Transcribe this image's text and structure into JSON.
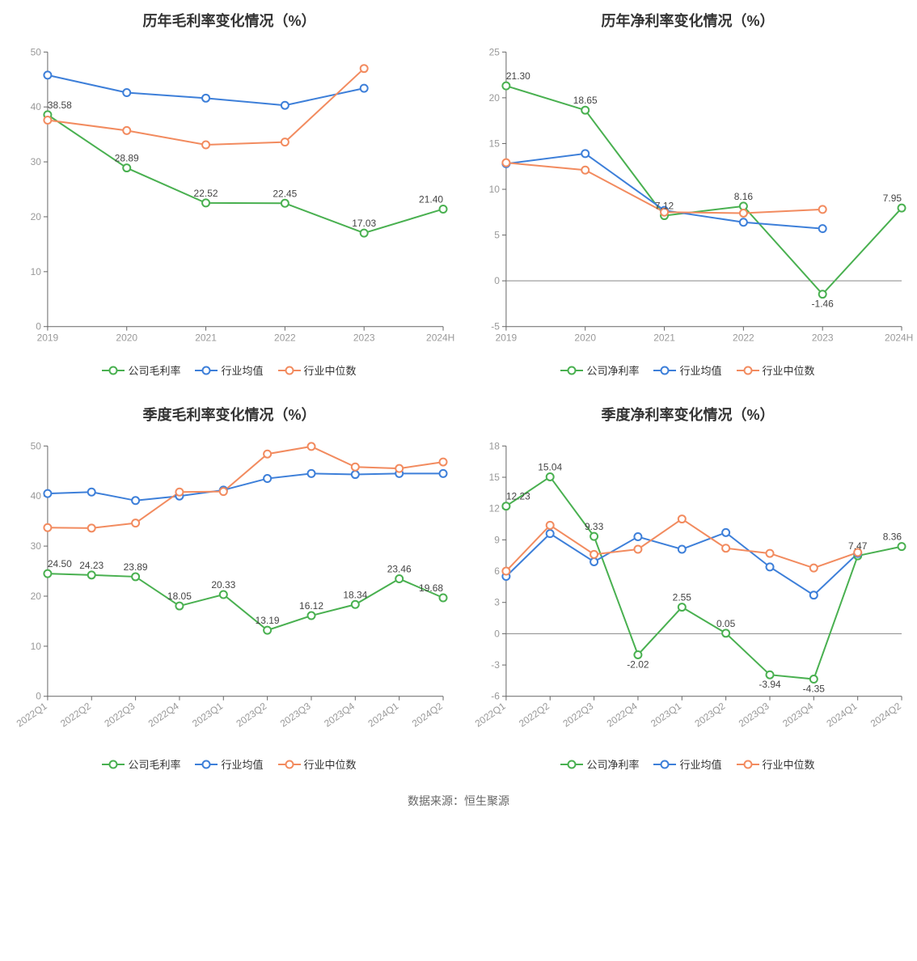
{
  "source_label": "数据来源：恒生聚源",
  "colors": {
    "company": "#49b050",
    "avg": "#3d7fd9",
    "median": "#f28b5f",
    "axis": "#666666",
    "tick_text": "#999999",
    "label_text": "#444444",
    "background": "#ffffff"
  },
  "marker_radius": 4.5,
  "line_width": 2,
  "legend_labels": {
    "company_gross": "公司毛利率",
    "company_net": "公司净利率",
    "avg": "行业均值",
    "median": "行业中位数"
  },
  "charts": [
    {
      "id": "annual_gross",
      "title": "历年毛利率变化情况（%）",
      "categories": [
        "2019",
        "2020",
        "2021",
        "2022",
        "2023",
        "2024H1"
      ],
      "y": {
        "min": 0,
        "max": 50,
        "step": 10
      },
      "x_label_rotate": 0,
      "series": [
        {
          "key": "company",
          "legend": "company_gross",
          "data": [
            38.58,
            28.89,
            22.52,
            22.45,
            17.03,
            21.4
          ],
          "labels": [
            "38.58",
            "28.89",
            "22.52",
            "22.45",
            "17.03",
            "21.40"
          ],
          "show_labels": true
        },
        {
          "key": "avg",
          "legend": "avg",
          "data": [
            45.8,
            42.6,
            41.6,
            40.3,
            43.4,
            null
          ],
          "show_labels": false
        },
        {
          "key": "median",
          "legend": "median",
          "data": [
            37.6,
            35.7,
            33.1,
            33.6,
            47.0,
            null
          ],
          "show_labels": false
        }
      ]
    },
    {
      "id": "annual_net",
      "title": "历年净利率变化情况（%）",
      "categories": [
        "2019",
        "2020",
        "2021",
        "2022",
        "2023",
        "2024H1"
      ],
      "y": {
        "min": -5,
        "max": 25,
        "step": 5
      },
      "x_label_rotate": 0,
      "series": [
        {
          "key": "company",
          "legend": "company_net",
          "data": [
            21.3,
            18.65,
            7.12,
            8.16,
            -1.46,
            7.95
          ],
          "labels": [
            "21.30",
            "18.65",
            "7.12",
            "8.16",
            "-1.46",
            "7.95"
          ],
          "show_labels": true
        },
        {
          "key": "avg",
          "legend": "avg",
          "data": [
            12.8,
            13.9,
            7.7,
            6.4,
            5.7,
            null
          ],
          "show_labels": false
        },
        {
          "key": "median",
          "legend": "median",
          "data": [
            12.9,
            12.1,
            7.5,
            7.4,
            7.8,
            null
          ],
          "show_labels": false
        }
      ]
    },
    {
      "id": "quarter_gross",
      "title": "季度毛利率变化情况（%）",
      "categories": [
        "2022Q1",
        "2022Q2",
        "2022Q3",
        "2022Q4",
        "2023Q1",
        "2023Q2",
        "2023Q3",
        "2023Q4",
        "2024Q1",
        "2024Q2"
      ],
      "y": {
        "min": 0,
        "max": 50,
        "step": 10
      },
      "x_label_rotate": -35,
      "series": [
        {
          "key": "company",
          "legend": "company_gross",
          "data": [
            24.5,
            24.23,
            23.89,
            18.05,
            20.33,
            13.19,
            16.12,
            18.34,
            23.46,
            19.68
          ],
          "labels": [
            "24.50",
            "24.23",
            "23.89",
            "18.05",
            "20.33",
            "13.19",
            "16.12",
            "18.34",
            "23.46",
            "19.68"
          ],
          "show_labels": true
        },
        {
          "key": "avg",
          "legend": "avg",
          "data": [
            40.5,
            40.8,
            39.1,
            40.0,
            41.2,
            43.5,
            44.5,
            44.3,
            44.5,
            44.5
          ],
          "show_labels": false
        },
        {
          "key": "median",
          "legend": "median",
          "data": [
            33.7,
            33.6,
            34.6,
            40.8,
            40.9,
            48.4,
            49.9,
            45.8,
            45.5,
            46.8
          ],
          "show_labels": false
        }
      ]
    },
    {
      "id": "quarter_net",
      "title": "季度净利率变化情况（%）",
      "categories": [
        "2022Q1",
        "2022Q2",
        "2022Q3",
        "2022Q4",
        "2023Q1",
        "2023Q2",
        "2023Q3",
        "2023Q4",
        "2024Q1",
        "2024Q2"
      ],
      "y": {
        "min": -6,
        "max": 18,
        "step": 3
      },
      "x_label_rotate": -35,
      "series": [
        {
          "key": "company",
          "legend": "company_net",
          "data": [
            12.23,
            15.04,
            9.33,
            -2.02,
            2.55,
            0.05,
            -3.94,
            -4.35,
            7.47,
            8.36
          ],
          "labels": [
            "12.23",
            "15.04",
            "9.33",
            "-2.02",
            "2.55",
            "0.05",
            "-3.94",
            "-4.35",
            "7.47",
            "8.36"
          ],
          "show_labels": true
        },
        {
          "key": "avg",
          "legend": "avg",
          "data": [
            5.5,
            9.6,
            6.9,
            9.3,
            8.1,
            9.7,
            6.4,
            3.7,
            7.7,
            null
          ],
          "show_labels": false
        },
        {
          "key": "median",
          "legend": "median",
          "data": [
            6.0,
            10.4,
            7.6,
            8.1,
            11.0,
            8.2,
            7.7,
            6.3,
            7.8,
            null
          ],
          "show_labels": false
        }
      ]
    }
  ]
}
